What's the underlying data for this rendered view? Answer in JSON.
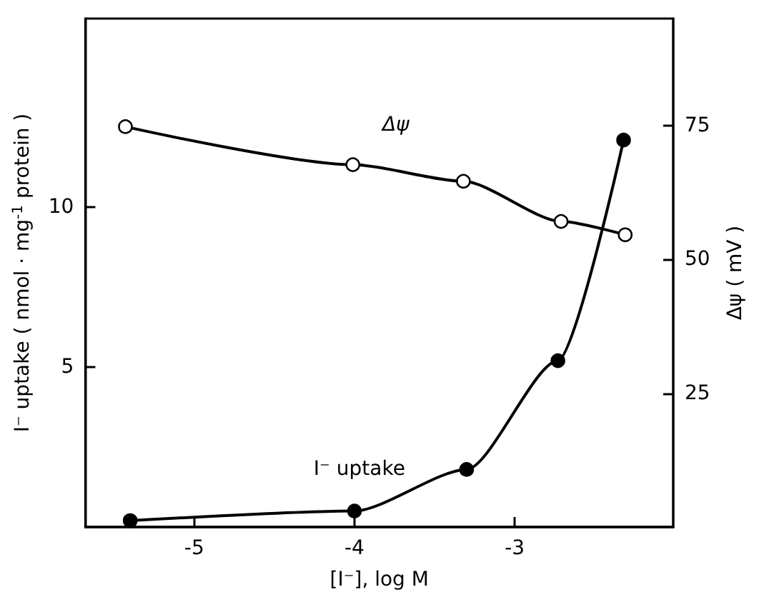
{
  "chart_data": {
    "type": "line",
    "xlabel": "[I⁻], log M",
    "ylabel": "I⁻ uptake ( nmol · mg$^{-1}$ protein )",
    "y2label": "Δψ ( mV )",
    "xlim": [
      -5.68,
      -2.01
    ],
    "xticks": [
      -5,
      -4,
      -3
    ],
    "ylim": [
      0,
      15.9
    ],
    "yticks": [
      5,
      10
    ],
    "y2lim": [
      0,
      95
    ],
    "y2ticks": [
      25,
      50,
      75
    ],
    "grid": false,
    "legend": false,
    "marker": "circle",
    "line_style": "solid",
    "series": [
      {
        "name": "I⁻ uptake",
        "color": "#000000",
        "x": [
          -5.4,
          -4.0,
          -3.3,
          -2.73,
          -2.32
        ],
        "values": [
          0.2,
          0.5,
          1.8,
          5.2,
          12.1
        ]
      },
      {
        "name": "Δψ",
        "color": "#000000",
        "axis": "y2",
        "x": [
          -5.43,
          -4.01,
          -3.32,
          -2.71,
          -2.31
        ],
        "values": [
          74.8,
          67.7,
          64.6,
          57.1,
          54.6
        ]
      }
    ]
  }
}
